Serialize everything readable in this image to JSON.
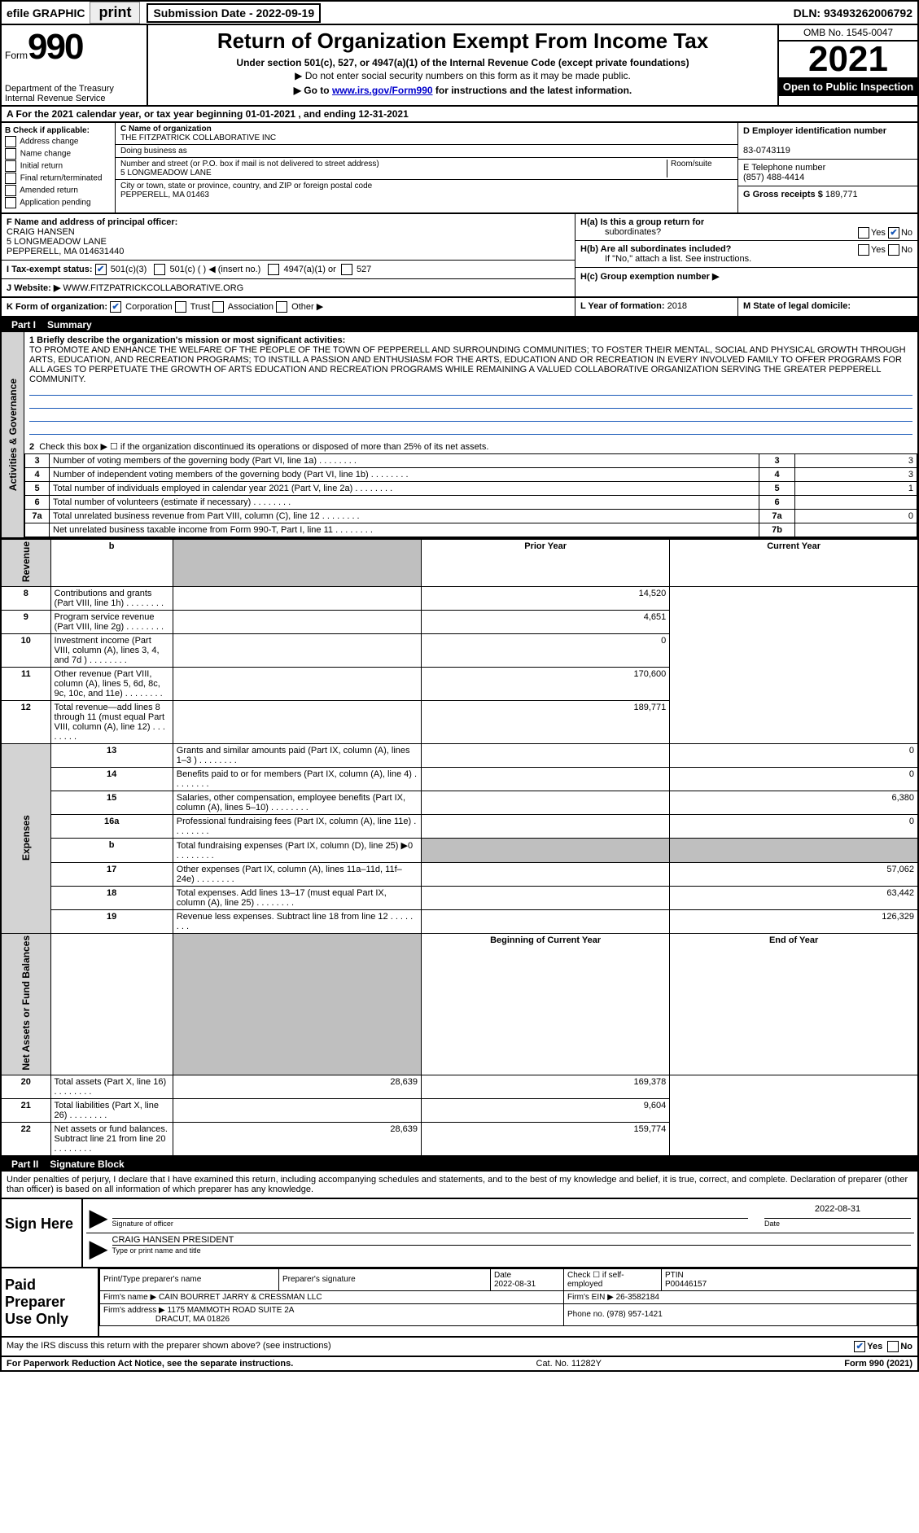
{
  "top_bar": {
    "efile": "efile GRAPHIC",
    "print": "print",
    "submission_label": "Submission Date - 2022-09-19",
    "dln": "DLN: 93493262006792"
  },
  "header": {
    "form_word": "Form",
    "form_number": "990",
    "dept": "Department of the Treasury\nInternal Revenue Service",
    "title": "Return of Organization Exempt From Income Tax",
    "subtitle": "Under section 501(c), 527, or 4947(a)(1) of the Internal Revenue Code (except private foundations)",
    "note": "▶ Do not enter social security numbers on this form as it may be made public.",
    "goto_prefix": "▶ Go to ",
    "goto_link": "www.irs.gov/Form990",
    "goto_suffix": " for instructions and the latest information.",
    "omb": "OMB No. 1545-0047",
    "year": "2021",
    "open_public": "Open to Public Inspection"
  },
  "row_a": "A For the 2021 calendar year, or tax year beginning 01-01-2021   , and ending 12-31-2021",
  "col_b": {
    "caption": "B Check if applicable:",
    "items": [
      "Address change",
      "Name change",
      "Initial return",
      "Final return/terminated",
      "Amended return",
      "Application pending"
    ]
  },
  "col_c": {
    "name_label": "C Name of organization",
    "name": "THE FITZPATRICK COLLABORATIVE INC",
    "dba_label": "Doing business as",
    "dba": "",
    "street_label": "Number and street (or P.O. box if mail is not delivered to street address)",
    "street": "5 LONGMEADOW LANE",
    "room_label": "Room/suite",
    "city_label": "City or town, state or province, country, and ZIP or foreign postal code",
    "city": "PEPPERELL, MA  01463"
  },
  "col_d": {
    "ein_label": "D Employer identification number",
    "ein": "83-0743119",
    "phone_label": "E Telephone number",
    "phone": "(857) 488-4414",
    "gross_label": "G Gross receipts $",
    "gross": "189,771"
  },
  "row_f": {
    "label": "F  Name and address of principal officer:",
    "name": "CRAIG HANSEN",
    "addr1": "5 LONGMEADOW LANE",
    "addr2": "PEPPERELL, MA  014631440"
  },
  "row_ha": {
    "label": "H(a)  Is this a group return for",
    "sub": "subordinates?",
    "yes": "Yes",
    "no": "No"
  },
  "row_hb": {
    "label": "H(b)  Are all subordinates included?",
    "yes": "Yes",
    "no": "No",
    "note": "If \"No,\" attach a list. See instructions."
  },
  "row_hc": {
    "label": "H(c)  Group exemption number ▶"
  },
  "row_i": {
    "label": "I  Tax-exempt status:",
    "opt1": "501(c)(3)",
    "opt2": "501(c) (   ) ◀ (insert no.)",
    "opt3": "4947(a)(1) or",
    "opt4": "527"
  },
  "row_j": {
    "label": "J  Website: ▶",
    "value": "WWW.FITZPATRICKCOLLABORATIVE.ORG"
  },
  "row_k": {
    "label": "K Form of organization:",
    "corp": "Corporation",
    "trust": "Trust",
    "assoc": "Association",
    "other": "Other ▶"
  },
  "row_l": {
    "label": "L Year of formation:",
    "value": "2018"
  },
  "row_m": {
    "label": "M State of legal domicile:",
    "value": ""
  },
  "part1": {
    "label": "Part I",
    "title": "Summary",
    "q1_label": "1  Briefly describe the organization's mission or most significant activities:",
    "mission": "TO PROMOTE AND ENHANCE THE WELFARE OF THE PEOPLE OF THE TOWN OF PEPPERELL AND SURROUNDING COMMUNITIES; TO FOSTER THEIR MENTAL, SOCIAL AND PHYSICAL GROWTH THROUGH ARTS, EDUCATION, AND RECREATION PROGRAMS; TO INSTILL A PASSION AND ENTHUSIASM FOR THE ARTS, EDUCATION AND OR RECREATION IN EVERY INVOLVED FAMILY TO OFFER PROGRAMS FOR ALL AGES TO PERPETUATE THE GROWTH OF ARTS EDUCATION AND RECREATION PROGRAMS WHILE REMAINING A VALUED COLLABORATIVE ORGANIZATION SERVING THE GREATER PEPPERELL COMMUNITY.",
    "q2": "Check this box ▶ ☐ if the organization discontinued its operations or disposed of more than 25% of its net assets.",
    "sidebar1": "Activities & Governance",
    "sidebar2": "Revenue",
    "sidebar3": "Expenses",
    "sidebar4": "Net Assets or Fund Balances",
    "prior_year": "Prior Year",
    "current_year": "Current Year",
    "begin_year": "Beginning of Current Year",
    "end_year": "End of Year",
    "rows_gov": [
      {
        "n": "3",
        "text": "Number of voting members of the governing body (Part VI, line 1a)",
        "box": "3",
        "val": "3"
      },
      {
        "n": "4",
        "text": "Number of independent voting members of the governing body (Part VI, line 1b)",
        "box": "4",
        "val": "3"
      },
      {
        "n": "5",
        "text": "Total number of individuals employed in calendar year 2021 (Part V, line 2a)",
        "box": "5",
        "val": "1"
      },
      {
        "n": "6",
        "text": "Total number of volunteers (estimate if necessary)",
        "box": "6",
        "val": ""
      },
      {
        "n": "7a",
        "text": "Total unrelated business revenue from Part VIII, column (C), line 12",
        "box": "7a",
        "val": "0"
      },
      {
        "n": "",
        "text": "Net unrelated business taxable income from Form 990-T, Part I, line 11",
        "box": "7b",
        "val": ""
      }
    ],
    "rows_rev": [
      {
        "n": "8",
        "text": "Contributions and grants (Part VIII, line 1h)",
        "prior": "",
        "curr": "14,520"
      },
      {
        "n": "9",
        "text": "Program service revenue (Part VIII, line 2g)",
        "prior": "",
        "curr": "4,651"
      },
      {
        "n": "10",
        "text": "Investment income (Part VIII, column (A), lines 3, 4, and 7d )",
        "prior": "",
        "curr": "0"
      },
      {
        "n": "11",
        "text": "Other revenue (Part VIII, column (A), lines 5, 6d, 8c, 9c, 10c, and 11e)",
        "prior": "",
        "curr": "170,600"
      },
      {
        "n": "12",
        "text": "Total revenue—add lines 8 through 11 (must equal Part VIII, column (A), line 12)",
        "prior": "",
        "curr": "189,771"
      }
    ],
    "rows_exp": [
      {
        "n": "13",
        "text": "Grants and similar amounts paid (Part IX, column (A), lines 1–3 )",
        "prior": "",
        "curr": "0"
      },
      {
        "n": "14",
        "text": "Benefits paid to or for members (Part IX, column (A), line 4)",
        "prior": "",
        "curr": "0"
      },
      {
        "n": "15",
        "text": "Salaries, other compensation, employee benefits (Part IX, column (A), lines 5–10)",
        "prior": "",
        "curr": "6,380"
      },
      {
        "n": "16a",
        "text": "Professional fundraising fees (Part IX, column (A), line 11e)",
        "prior": "",
        "curr": "0"
      },
      {
        "n": "b",
        "text": "Total fundraising expenses (Part IX, column (D), line 25) ▶0",
        "prior": "__shaded__",
        "curr": "__shaded__"
      },
      {
        "n": "17",
        "text": "Other expenses (Part IX, column (A), lines 11a–11d, 11f–24e)",
        "prior": "",
        "curr": "57,062"
      },
      {
        "n": "18",
        "text": "Total expenses. Add lines 13–17 (must equal Part IX, column (A), line 25)",
        "prior": "",
        "curr": "63,442"
      },
      {
        "n": "19",
        "text": "Revenue less expenses. Subtract line 18 from line 12",
        "prior": "",
        "curr": "126,329"
      }
    ],
    "rows_net": [
      {
        "n": "20",
        "text": "Total assets (Part X, line 16)",
        "prior": "28,639",
        "curr": "169,378"
      },
      {
        "n": "21",
        "text": "Total liabilities (Part X, line 26)",
        "prior": "",
        "curr": "9,604"
      },
      {
        "n": "22",
        "text": "Net assets or fund balances. Subtract line 21 from line 20",
        "prior": "28,639",
        "curr": "159,774"
      }
    ]
  },
  "part2": {
    "label": "Part II",
    "title": "Signature Block",
    "decl": "Under penalties of perjury, I declare that I have examined this return, including accompanying schedules and statements, and to the best of my knowledge and belief, it is true, correct, and complete. Declaration of preparer (other than officer) is based on all information of which preparer has any knowledge."
  },
  "sign": {
    "here": "Sign Here",
    "sig_label": "Signature of officer",
    "date_label": "Date",
    "date": "2022-08-31",
    "name": "CRAIG HANSEN  PRESIDENT",
    "name_label": "Type or print name and title"
  },
  "preparer": {
    "here": "Paid Preparer Use Only",
    "print_name_label": "Print/Type preparer's name",
    "sig_label": "Preparer's signature",
    "date_label": "Date",
    "date": "2022-08-31",
    "check_label": "Check ☐ if self-employed",
    "ptin_label": "PTIN",
    "ptin": "P00446157",
    "firm_name_label": "Firm's name     ▶",
    "firm_name": "CAIN BOURRET JARRY & CRESSMAN LLC",
    "firm_ein_label": "Firm's EIN ▶",
    "firm_ein": "26-3582184",
    "firm_addr_label": "Firm's address ▶",
    "firm_addr1": "1175 MAMMOTH ROAD SUITE 2A",
    "firm_addr2": "DRACUT, MA  01826",
    "phone_label": "Phone no.",
    "phone": "(978) 957-1421"
  },
  "footer": {
    "discuss": "May the IRS discuss this return with the preparer shown above? (see instructions)",
    "yes": "Yes",
    "no": "No",
    "paperwork": "For Paperwork Reduction Act Notice, see the separate instructions.",
    "cat": "Cat. No. 11282Y",
    "form": "Form 990 (2021)"
  },
  "colors": {
    "link": "#0000cc",
    "check": "#1858b8",
    "shaded": "#bfbfbf",
    "sidebar": "#d3d3d3"
  }
}
